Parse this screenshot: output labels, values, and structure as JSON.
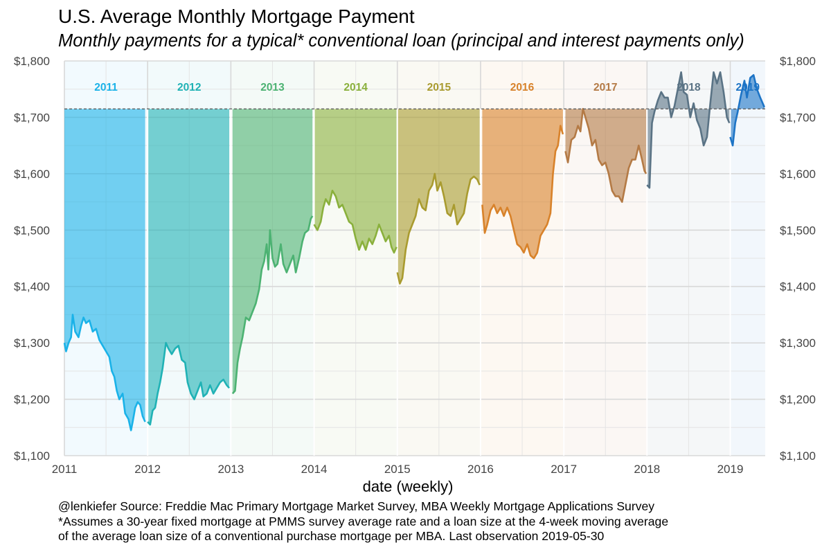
{
  "title": "U.S. Average Monthly Mortgage Payment",
  "subtitle": "Monthly payments for a typical* conventional loan (principal and interest payments only)",
  "caption": [
    "@lenkiefer Source: Freddie Mac Primary Mortgage Market Survey, MBA Weekly Mortgage Applications Survey",
    "*Assumes a 30-year fixed mortgage at PMMS survey average rate and a loan size at the 4-week moving average",
    "of the average loan size of a conventional purchase mortgage per MBA. Last observation 2019-05-30"
  ],
  "chart_data": {
    "type": "area",
    "xlabel": "date (weekly)",
    "ylabel": "",
    "xlim": [
      2011,
      2019.42
    ],
    "ylim": [
      1100,
      1800
    ],
    "x_ticks": [
      2011,
      2012,
      2013,
      2014,
      2015,
      2016,
      2017,
      2018,
      2019
    ],
    "y_ticks": [
      1100,
      1200,
      1300,
      1400,
      1500,
      1600,
      1700,
      1800
    ],
    "y_tick_labels": [
      "$1,100",
      "$1,200",
      "$1,300",
      "$1,400",
      "$1,500",
      "$1,600",
      "$1,700",
      "$1,800"
    ],
    "reference_line": {
      "value": 1715,
      "style": "dashed"
    },
    "grid": true,
    "secondary_y_axis": true,
    "legend": "none",
    "series": [
      {
        "name": "2011",
        "color": "#1ab2e8",
        "points": [
          [
            2011.0,
            1300
          ],
          [
            2011.02,
            1285
          ],
          [
            2011.05,
            1300
          ],
          [
            2011.08,
            1310
          ],
          [
            2011.1,
            1350
          ],
          [
            2011.13,
            1320
          ],
          [
            2011.17,
            1310
          ],
          [
            2011.2,
            1330
          ],
          [
            2011.23,
            1345
          ],
          [
            2011.26,
            1335
          ],
          [
            2011.3,
            1340
          ],
          [
            2011.34,
            1320
          ],
          [
            2011.38,
            1325
          ],
          [
            2011.42,
            1305
          ],
          [
            2011.46,
            1295
          ],
          [
            2011.5,
            1285
          ],
          [
            2011.54,
            1275
          ],
          [
            2011.57,
            1250
          ],
          [
            2011.6,
            1240
          ],
          [
            2011.63,
            1215
          ],
          [
            2011.66,
            1200
          ],
          [
            2011.7,
            1210
          ],
          [
            2011.73,
            1175
          ],
          [
            2011.77,
            1165
          ],
          [
            2011.8,
            1145
          ],
          [
            2011.82,
            1160
          ],
          [
            2011.85,
            1185
          ],
          [
            2011.88,
            1195
          ],
          [
            2011.91,
            1190
          ],
          [
            2011.94,
            1170
          ],
          [
            2011.97,
            1160
          ]
        ]
      },
      {
        "name": "2012",
        "color": "#20b2b5",
        "points": [
          [
            2012.0,
            1160
          ],
          [
            2012.03,
            1155
          ],
          [
            2012.06,
            1180
          ],
          [
            2012.09,
            1185
          ],
          [
            2012.12,
            1210
          ],
          [
            2012.15,
            1230
          ],
          [
            2012.18,
            1255
          ],
          [
            2012.22,
            1300
          ],
          [
            2012.25,
            1290
          ],
          [
            2012.29,
            1280
          ],
          [
            2012.33,
            1290
          ],
          [
            2012.37,
            1295
          ],
          [
            2012.41,
            1270
          ],
          [
            2012.45,
            1265
          ],
          [
            2012.48,
            1230
          ],
          [
            2012.52,
            1210
          ],
          [
            2012.56,
            1200
          ],
          [
            2012.6,
            1215
          ],
          [
            2012.64,
            1230
          ],
          [
            2012.67,
            1205
          ],
          [
            2012.71,
            1210
          ],
          [
            2012.75,
            1225
          ],
          [
            2012.79,
            1210
          ],
          [
            2012.83,
            1220
          ],
          [
            2012.87,
            1230
          ],
          [
            2012.91,
            1235
          ],
          [
            2012.95,
            1225
          ],
          [
            2012.98,
            1220
          ]
        ]
      },
      {
        "name": "2013",
        "color": "#4cb272",
        "points": [
          [
            2013.02,
            1210
          ],
          [
            2013.05,
            1215
          ],
          [
            2013.08,
            1265
          ],
          [
            2013.11,
            1290
          ],
          [
            2013.14,
            1310
          ],
          [
            2013.18,
            1345
          ],
          [
            2013.22,
            1340
          ],
          [
            2013.26,
            1355
          ],
          [
            2013.3,
            1370
          ],
          [
            2013.34,
            1395
          ],
          [
            2013.37,
            1430
          ],
          [
            2013.4,
            1445
          ],
          [
            2013.43,
            1475
          ],
          [
            2013.45,
            1430
          ],
          [
            2013.47,
            1500
          ],
          [
            2013.5,
            1450
          ],
          [
            2013.53,
            1435
          ],
          [
            2013.56,
            1440
          ],
          [
            2013.6,
            1475
          ],
          [
            2013.63,
            1440
          ],
          [
            2013.67,
            1425
          ],
          [
            2013.71,
            1440
          ],
          [
            2013.75,
            1455
          ],
          [
            2013.78,
            1425
          ],
          [
            2013.82,
            1450
          ],
          [
            2013.86,
            1480
          ],
          [
            2013.89,
            1495
          ],
          [
            2013.93,
            1500
          ],
          [
            2013.96,
            1520
          ],
          [
            2013.98,
            1525
          ]
        ]
      },
      {
        "name": "2014",
        "color": "#8ab03c",
        "points": [
          [
            2014.0,
            1510
          ],
          [
            2014.04,
            1500
          ],
          [
            2014.08,
            1515
          ],
          [
            2014.11,
            1540
          ],
          [
            2014.14,
            1555
          ],
          [
            2014.18,
            1545
          ],
          [
            2014.22,
            1570
          ],
          [
            2014.26,
            1560
          ],
          [
            2014.3,
            1540
          ],
          [
            2014.34,
            1545
          ],
          [
            2014.38,
            1530
          ],
          [
            2014.42,
            1515
          ],
          [
            2014.46,
            1510
          ],
          [
            2014.5,
            1485
          ],
          [
            2014.54,
            1465
          ],
          [
            2014.58,
            1480
          ],
          [
            2014.62,
            1465
          ],
          [
            2014.66,
            1485
          ],
          [
            2014.7,
            1475
          ],
          [
            2014.74,
            1490
          ],
          [
            2014.78,
            1510
          ],
          [
            2014.82,
            1495
          ],
          [
            2014.86,
            1480
          ],
          [
            2014.9,
            1490
          ],
          [
            2014.93,
            1470
          ],
          [
            2014.96,
            1460
          ],
          [
            2014.99,
            1470
          ]
        ]
      },
      {
        "name": "2015",
        "color": "#a99b2f",
        "points": [
          [
            2015.0,
            1425
          ],
          [
            2015.03,
            1405
          ],
          [
            2015.06,
            1415
          ],
          [
            2015.1,
            1465
          ],
          [
            2015.14,
            1495
          ],
          [
            2015.18,
            1510
          ],
          [
            2015.22,
            1525
          ],
          [
            2015.26,
            1555
          ],
          [
            2015.3,
            1540
          ],
          [
            2015.34,
            1535
          ],
          [
            2015.38,
            1570
          ],
          [
            2015.42,
            1580
          ],
          [
            2015.45,
            1600
          ],
          [
            2015.48,
            1570
          ],
          [
            2015.52,
            1585
          ],
          [
            2015.56,
            1560
          ],
          [
            2015.6,
            1530
          ],
          [
            2015.64,
            1525
          ],
          [
            2015.68,
            1545
          ],
          [
            2015.72,
            1510
          ],
          [
            2015.76,
            1520
          ],
          [
            2015.8,
            1530
          ],
          [
            2015.84,
            1565
          ],
          [
            2015.88,
            1590
          ],
          [
            2015.92,
            1595
          ],
          [
            2015.96,
            1590
          ],
          [
            2015.99,
            1580
          ]
        ]
      },
      {
        "name": "2016",
        "color": "#d8822a",
        "points": [
          [
            2016.02,
            1545
          ],
          [
            2016.05,
            1495
          ],
          [
            2016.08,
            1510
          ],
          [
            2016.12,
            1535
          ],
          [
            2016.16,
            1545
          ],
          [
            2016.2,
            1530
          ],
          [
            2016.24,
            1540
          ],
          [
            2016.28,
            1525
          ],
          [
            2016.32,
            1540
          ],
          [
            2016.36,
            1525
          ],
          [
            2016.4,
            1500
          ],
          [
            2016.44,
            1475
          ],
          [
            2016.48,
            1470
          ],
          [
            2016.52,
            1460
          ],
          [
            2016.56,
            1475
          ],
          [
            2016.6,
            1455
          ],
          [
            2016.64,
            1450
          ],
          [
            2016.68,
            1460
          ],
          [
            2016.72,
            1490
          ],
          [
            2016.76,
            1500
          ],
          [
            2016.8,
            1510
          ],
          [
            2016.84,
            1530
          ],
          [
            2016.87,
            1600
          ],
          [
            2016.9,
            1640
          ],
          [
            2016.93,
            1650
          ],
          [
            2016.96,
            1685
          ],
          [
            2016.99,
            1670
          ]
        ]
      },
      {
        "name": "2017",
        "color": "#b47a45",
        "points": [
          [
            2017.02,
            1640
          ],
          [
            2017.05,
            1620
          ],
          [
            2017.09,
            1660
          ],
          [
            2017.13,
            1665
          ],
          [
            2017.17,
            1685
          ],
          [
            2017.2,
            1675
          ],
          [
            2017.23,
            1715
          ],
          [
            2017.26,
            1700
          ],
          [
            2017.3,
            1680
          ],
          [
            2017.34,
            1650
          ],
          [
            2017.38,
            1660
          ],
          [
            2017.42,
            1625
          ],
          [
            2017.46,
            1615
          ],
          [
            2017.5,
            1620
          ],
          [
            2017.54,
            1600
          ],
          [
            2017.58,
            1570
          ],
          [
            2017.62,
            1560
          ],
          [
            2017.66,
            1560
          ],
          [
            2017.7,
            1550
          ],
          [
            2017.74,
            1580
          ],
          [
            2017.78,
            1610
          ],
          [
            2017.82,
            1625
          ],
          [
            2017.86,
            1625
          ],
          [
            2017.9,
            1650
          ],
          [
            2017.94,
            1625
          ],
          [
            2017.97,
            1605
          ],
          [
            2017.99,
            1600
          ]
        ]
      },
      {
        "name": "2018",
        "color": "#5a7385",
        "points": [
          [
            2018.0,
            1580
          ],
          [
            2018.03,
            1575
          ],
          [
            2018.06,
            1690
          ],
          [
            2018.09,
            1710
          ],
          [
            2018.13,
            1730
          ],
          [
            2018.17,
            1745
          ],
          [
            2018.21,
            1735
          ],
          [
            2018.25,
            1735
          ],
          [
            2018.29,
            1700
          ],
          [
            2018.33,
            1720
          ],
          [
            2018.37,
            1750
          ],
          [
            2018.41,
            1780
          ],
          [
            2018.44,
            1745
          ],
          [
            2018.48,
            1740
          ],
          [
            2018.52,
            1700
          ],
          [
            2018.56,
            1725
          ],
          [
            2018.6,
            1695
          ],
          [
            2018.64,
            1680
          ],
          [
            2018.68,
            1650
          ],
          [
            2018.72,
            1665
          ],
          [
            2018.76,
            1725
          ],
          [
            2018.8,
            1780
          ],
          [
            2018.84,
            1760
          ],
          [
            2018.88,
            1780
          ],
          [
            2018.92,
            1745
          ],
          [
            2018.96,
            1700
          ],
          [
            2018.99,
            1690
          ]
        ]
      },
      {
        "name": "2019",
        "color": "#1d74c6",
        "points": [
          [
            2019.0,
            1665
          ],
          [
            2019.03,
            1650
          ],
          [
            2019.06,
            1690
          ],
          [
            2019.09,
            1710
          ],
          [
            2019.13,
            1740
          ],
          [
            2019.17,
            1765
          ],
          [
            2019.2,
            1735
          ],
          [
            2019.24,
            1770
          ],
          [
            2019.28,
            1775
          ],
          [
            2019.32,
            1750
          ],
          [
            2019.36,
            1735
          ],
          [
            2019.41,
            1718
          ]
        ]
      }
    ]
  }
}
